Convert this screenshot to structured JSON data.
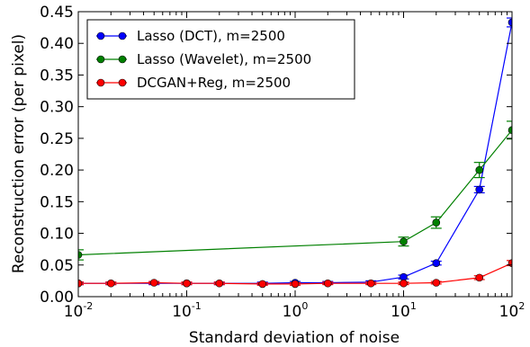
{
  "chart_data": {
    "type": "line",
    "xlabel": "Standard deviation of noise",
    "ylabel": "Reconstruction error (per pixel)",
    "xscale": "log",
    "xlim": [
      0.01,
      100
    ],
    "ylim": [
      0.0,
      0.45
    ],
    "x_ticks": [
      {
        "base": "10",
        "exp": "-2",
        "value": 0.01
      },
      {
        "base": "10",
        "exp": "-1",
        "value": 0.1
      },
      {
        "base": "10",
        "exp": "0",
        "value": 1
      },
      {
        "base": "10",
        "exp": "1",
        "value": 10
      },
      {
        "base": "10",
        "exp": "2",
        "value": 100
      }
    ],
    "y_ticks": [
      "0.00",
      "0.05",
      "0.10",
      "0.15",
      "0.20",
      "0.25",
      "0.30",
      "0.35",
      "0.40",
      "0.45"
    ],
    "legend_position": "upper-left",
    "grid": false,
    "series": [
      {
        "name": "Lasso (DCT), m=2500",
        "color": "#0000ff",
        "x": [
          0.01,
          0.02,
          0.05,
          0.1,
          0.2,
          0.5,
          1,
          2,
          5,
          10,
          20,
          50,
          100
        ],
        "y": [
          0.021,
          0.021,
          0.021,
          0.021,
          0.021,
          0.021,
          0.022,
          0.022,
          0.023,
          0.031,
          0.053,
          0.169,
          0.433
        ],
        "err": [
          0.002,
          0.002,
          0.002,
          0.002,
          0.002,
          0.002,
          0.002,
          0.002,
          0.002,
          0.003,
          0.003,
          0.005,
          0.007
        ],
        "markers": [
          true,
          false,
          false,
          true,
          false,
          false,
          true,
          false,
          false,
          true,
          true,
          true,
          true
        ]
      },
      {
        "name": "Lasso (Wavelet), m=2500",
        "color": "#008000",
        "x": [
          0.01,
          10,
          20,
          50,
          100
        ],
        "y": [
          0.066,
          0.087,
          0.117,
          0.2,
          0.263
        ],
        "err": [
          0.008,
          0.007,
          0.009,
          0.012,
          0.014
        ],
        "markers": [
          true,
          true,
          true,
          true,
          true
        ]
      },
      {
        "name": "DCGAN+Reg, m=2500",
        "color": "#ff0000",
        "x": [
          0.01,
          0.02,
          0.05,
          0.1,
          0.2,
          0.5,
          1,
          2,
          5,
          10,
          20,
          50,
          100
        ],
        "y": [
          0.021,
          0.021,
          0.022,
          0.021,
          0.021,
          0.02,
          0.02,
          0.021,
          0.021,
          0.021,
          0.022,
          0.03,
          0.053
        ],
        "err": [
          0.002,
          0.002,
          0.002,
          0.002,
          0.002,
          0.002,
          0.002,
          0.002,
          0.002,
          0.002,
          0.002,
          0.003,
          0.004
        ],
        "markers": [
          true,
          true,
          true,
          true,
          true,
          true,
          true,
          true,
          true,
          true,
          true,
          true,
          true
        ]
      }
    ]
  }
}
